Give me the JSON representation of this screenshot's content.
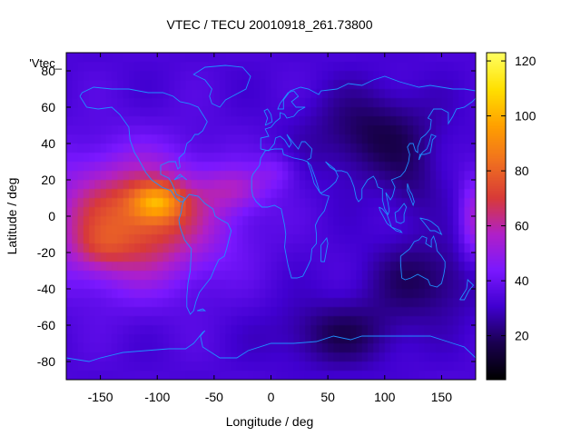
{
  "chart_data": {
    "type": "heatmap",
    "title": "VTEC / TECU 20010918_261.73800",
    "xlabel": "Longitude / deg",
    "ylabel": "Latitude / deg",
    "legend_label": "'Vtec_",
    "xlim": [
      -180,
      180
    ],
    "ylim": [
      -90,
      90
    ],
    "clim": [
      4,
      123
    ],
    "x_ticks": [
      -150,
      -100,
      -50,
      0,
      50,
      100,
      150
    ],
    "y_ticks": [
      -80,
      -60,
      -40,
      -20,
      0,
      20,
      40,
      60,
      80
    ],
    "colorbar_ticks": [
      20,
      40,
      60,
      80,
      100,
      120
    ],
    "colormap": [
      "#000000",
      "#1a0050",
      "#4000d0",
      "#7a18ff",
      "#b020c8",
      "#d83a38",
      "#f07020",
      "#ffa000",
      "#ffe000",
      "#ffff60"
    ],
    "overlay": "coastlines",
    "overlay_color": "#1e90ff",
    "grid": false
  }
}
